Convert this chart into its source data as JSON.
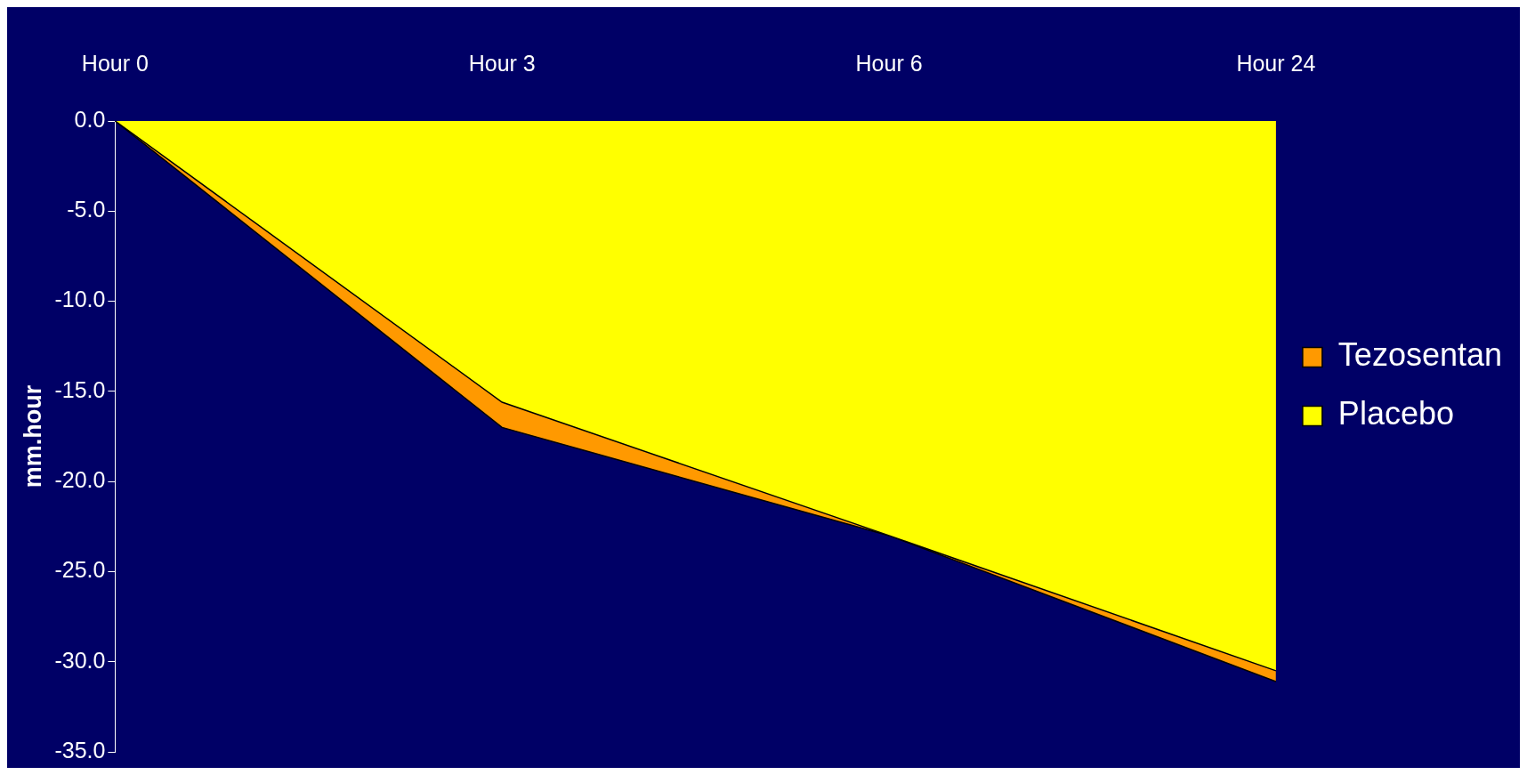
{
  "chart_data": {
    "type": "area",
    "ylabel": "mm.hour",
    "categories": [
      "Hour 0",
      "Hour 3",
      "Hour 6",
      "Hour 24"
    ],
    "series": [
      {
        "name": "Tezosentan",
        "color": "#ff9900",
        "values": [
          0,
          -17.0,
          -23.0,
          -31.1
        ]
      },
      {
        "name": "Placebo",
        "color": "#ffff00",
        "values": [
          0,
          -15.6,
          -23.0,
          -30.5
        ]
      }
    ],
    "ylim": [
      -35,
      0
    ],
    "yticks": [
      {
        "value": 0,
        "label": "0.0"
      },
      {
        "value": -5,
        "label": "-5.0"
      },
      {
        "value": -10,
        "label": "-10.0"
      },
      {
        "value": -15,
        "label": "-15.0"
      },
      {
        "value": -20,
        "label": "-20.0"
      },
      {
        "value": -25,
        "label": "-25.0"
      },
      {
        "value": -30,
        "label": "-30.0"
      },
      {
        "value": -35,
        "label": "-35.0"
      }
    ],
    "legend": "right"
  }
}
